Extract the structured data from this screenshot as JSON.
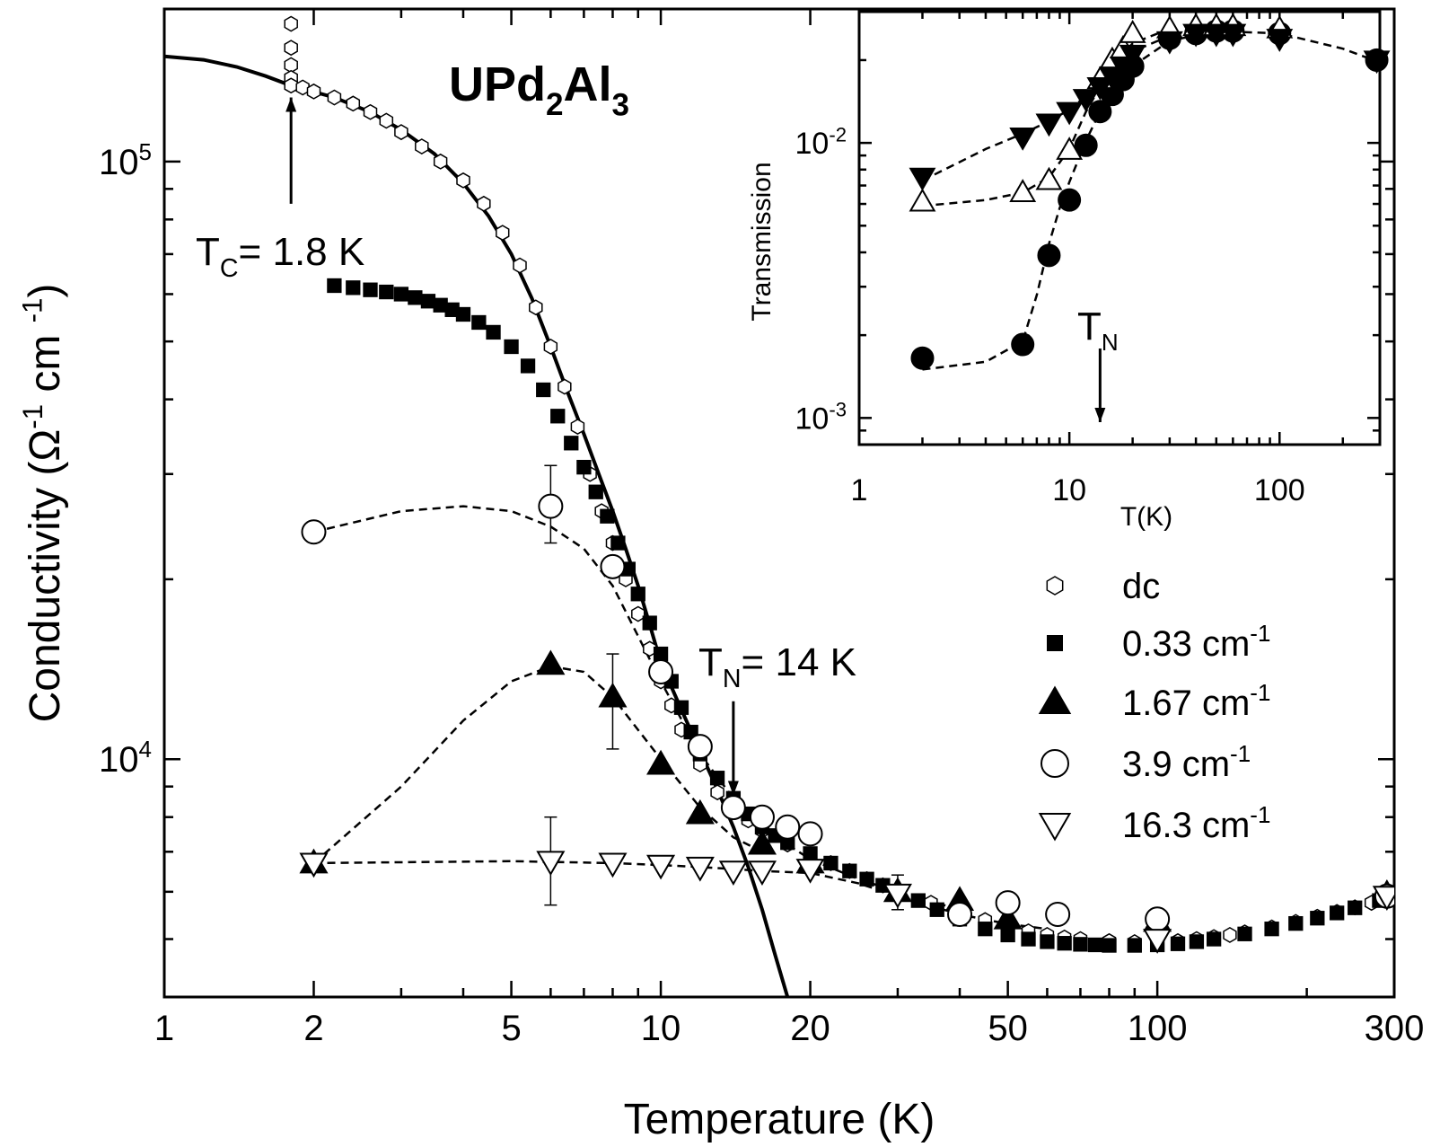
{
  "chart_data": [
    {
      "type": "scatter",
      "title_parts": {
        "base": "UPd",
        "sub1": "2",
        "mid": "Al",
        "sub2": "3"
      },
      "xlabel": "Temperature (K)",
      "ylabel": "Conductivity (Ω⁻¹ cm⁻¹)",
      "ylabel_parts": {
        "pre": "Conductivity (Ω",
        "sup1": "-1",
        "mid": " cm ",
        "sup2": "-1",
        "post": ")"
      },
      "xscale": "log",
      "yscale": "log",
      "xlim": [
        1,
        300
      ],
      "ylim": [
        4000,
        180000
      ],
      "xticks": [
        1,
        2,
        5,
        10,
        20,
        50,
        100,
        300
      ],
      "xtick_labels": [
        "1",
        "2",
        "5",
        "10",
        "20",
        "50",
        "100",
        "300"
      ],
      "yticks_major": [
        10000,
        100000
      ],
      "ytick_labels": [
        {
          "base": "10",
          "exp": "4"
        },
        {
          "base": "10",
          "exp": "5"
        }
      ],
      "annotations": [
        {
          "text": "T",
          "sub": "C",
          "rest": "= 1.8 K",
          "arrow_x": 1.8,
          "arrow_from_y": 85000,
          "arrow_to_y": 128000
        },
        {
          "text": "T",
          "sub": "N",
          "rest": "= 14 K",
          "arrow_x": 14,
          "arrow_from_y": 12500,
          "arrow_to_y": 8700
        }
      ],
      "legend": {
        "position": "lower-right",
        "entries": [
          {
            "label": "dc",
            "marker": "hexagon-open"
          },
          {
            "label": "0.33 cm",
            "sup": "-1",
            "marker": "square-filled"
          },
          {
            "label": "1.67 cm",
            "sup": "-1",
            "marker": "triangle-up-filled"
          },
          {
            "label": "3.9 cm",
            "sup": "-1",
            "marker": "circle-open"
          },
          {
            "label": "16.3 cm",
            "sup": "-1",
            "marker": "triangle-down-open"
          }
        ]
      },
      "series": [
        {
          "name": "dc",
          "marker": "hexagon-open",
          "x": [
            1.8,
            1.8,
            1.8,
            1.8,
            1.8,
            1.8,
            1.9,
            2.0,
            2.2,
            2.4,
            2.6,
            2.8,
            3.0,
            3.3,
            3.6,
            4.0,
            4.4,
            4.8,
            5.2,
            5.6,
            6.0,
            6.4,
            6.8,
            7.2,
            7.6,
            8.0,
            8.5,
            9.0,
            9.5,
            10.0,
            10.5,
            11,
            12,
            13,
            14,
            15,
            16,
            18,
            20,
            22,
            24,
            26,
            28,
            30,
            35,
            40,
            45,
            50,
            55,
            60,
            65,
            70,
            80,
            90,
            100,
            110,
            120,
            130,
            140,
            150,
            170,
            190,
            210,
            230,
            250,
            270,
            290
          ],
          "y": [
            200000,
            170000,
            155000,
            145000,
            138000,
            134000,
            133000,
            131000,
            128000,
            125000,
            121000,
            117000,
            112000,
            106000,
            100000,
            93000,
            85000,
            76000,
            67000,
            57000,
            49000,
            42000,
            36000,
            30000,
            26000,
            23000,
            20000,
            17500,
            15300,
            13500,
            12300,
            11200,
            9800,
            8800,
            8300,
            7900,
            7600,
            7200,
            6900,
            6700,
            6500,
            6300,
            6150,
            6000,
            5750,
            5550,
            5380,
            5250,
            5150,
            5080,
            5030,
            5000,
            4960,
            4940,
            4940,
            4960,
            5000,
            5040,
            5080,
            5130,
            5230,
            5340,
            5450,
            5550,
            5650,
            5750,
            5850
          ]
        },
        {
          "name": "0.33 cm-1",
          "marker": "square-filled",
          "x": [
            2.2,
            2.4,
            2.6,
            2.8,
            3.0,
            3.2,
            3.4,
            3.6,
            3.8,
            4.0,
            4.3,
            4.6,
            5.0,
            5.4,
            5.8,
            6.2,
            6.6,
            7.0,
            7.4,
            7.8,
            8.2,
            8.6,
            9.0,
            9.5,
            10.0,
            10.5,
            11,
            11.5,
            12,
            13,
            14,
            15,
            16,
            17,
            18,
            20,
            22,
            24,
            26,
            28,
            30,
            33,
            36,
            40,
            45,
            50,
            55,
            60,
            65,
            70,
            75,
            80,
            90,
            100,
            110,
            120,
            130,
            150,
            170,
            190,
            210,
            230,
            250,
            280
          ],
          "y": [
            62000,
            61500,
            61000,
            60500,
            60000,
            59200,
            58400,
            57500,
            56500,
            55500,
            53800,
            51800,
            49000,
            45500,
            41500,
            37500,
            33800,
            30800,
            28000,
            25500,
            23000,
            20800,
            18900,
            16900,
            15000,
            13500,
            12200,
            11100,
            10200,
            9300,
            8600,
            8100,
            7700,
            7450,
            7250,
            6950,
            6700,
            6500,
            6300,
            6150,
            6000,
            5800,
            5600,
            5400,
            5200,
            5080,
            5000,
            4950,
            4920,
            4900,
            4890,
            4880,
            4880,
            4890,
            4910,
            4950,
            5000,
            5100,
            5200,
            5310,
            5420,
            5530,
            5640,
            5800
          ]
        },
        {
          "name": "1.67 cm-1",
          "marker": "triangle-up-filled",
          "x": [
            2,
            6,
            8,
            10,
            12,
            16,
            20,
            30,
            40,
            50,
            100,
            290
          ],
          "y": [
            6700,
            14400,
            12700,
            9800,
            8100,
            7200,
            6700,
            6000,
            5800,
            5400,
            5350,
            5950
          ],
          "error_bars": [
            {
              "x": 8,
              "low": 10400,
              "high": 15000
            }
          ]
        },
        {
          "name": "3.9 cm-1",
          "marker": "circle-open",
          "x": [
            2,
            6,
            8,
            10,
            12,
            14,
            16,
            18,
            20,
            40,
            50,
            63,
            100,
            290
          ],
          "y": [
            24000,
            26500,
            21000,
            14000,
            10500,
            8300,
            8000,
            7700,
            7500,
            5500,
            5750,
            5500,
            5400,
            5900
          ],
          "error_bars": [
            {
              "x": 6,
              "low": 23000,
              "high": 31000
            }
          ]
        },
        {
          "name": "16.3 cm-1",
          "marker": "triangle-down-open",
          "x": [
            2,
            6,
            8,
            10,
            12,
            14,
            16,
            20,
            30,
            100,
            290
          ],
          "y": [
            6700,
            6750,
            6700,
            6650,
            6600,
            6500,
            6500,
            6550,
            5950,
            5000,
            5900
          ],
          "error_bars": [
            {
              "x": 6,
              "low": 5700,
              "high": 8000
            },
            {
              "x": 30,
              "low": 5600,
              "high": 6400
            }
          ]
        }
      ],
      "fit_curves": [
        {
          "style": "solid",
          "label": "fit",
          "x": [
            1,
            1.2,
            1.4,
            1.6,
            1.8,
            2.2,
            2.6,
            3.0,
            3.5,
            4.0,
            4.5,
            5.0,
            5.5,
            6.0,
            6.5,
            7.0,
            7.5,
            8.0,
            8.5,
            9.0,
            9.5,
            10,
            11,
            12,
            13,
            14,
            15,
            16,
            17,
            18
          ],
          "y": [
            150000,
            148000,
            144000,
            139000,
            134000,
            128000,
            121000,
            113000,
            103000,
            92000,
            81000,
            70000,
            59000,
            49000,
            41000,
            35000,
            30000,
            26000,
            22500,
            19500,
            16800,
            14500,
            12100,
            10300,
            8900,
            7700,
            6600,
            5600,
            4700,
            4000
          ]
        },
        {
          "style": "dashed",
          "series": "3.9 cm-1",
          "x": [
            2,
            3,
            4,
            5,
            6,
            7,
            8,
            10,
            12,
            14,
            16,
            18,
            20,
            25,
            30,
            40
          ],
          "y": [
            24000,
            26000,
            26500,
            26000,
            24500,
            22500,
            19500,
            13500,
            10200,
            8600,
            7700,
            7200,
            6800,
            6300,
            6000,
            5600
          ]
        },
        {
          "style": "dashed",
          "series": "1.67 cm-1",
          "x": [
            2,
            3,
            4,
            5,
            6,
            7,
            8,
            10,
            12,
            14,
            16
          ],
          "y": [
            6700,
            9000,
            11600,
            13500,
            14300,
            14000,
            12700,
            10000,
            8300,
            7400,
            7000
          ]
        },
        {
          "style": "dashed",
          "series": "16.3 cm-1",
          "x": [
            2,
            5,
            8,
            10,
            12,
            14,
            16,
            20,
            25,
            30,
            40,
            50,
            60
          ],
          "y": [
            6700,
            6750,
            6700,
            6650,
            6600,
            6550,
            6500,
            6450,
            6200,
            5900,
            5500,
            5300,
            5200
          ]
        }
      ]
    },
    {
      "type": "scatter",
      "title": "",
      "xlabel": "T(K)",
      "ylabel": "Transmission",
      "xscale": "log",
      "yscale": "log",
      "xlim": [
        1,
        300
      ],
      "ylim": [
        0.0008,
        0.03
      ],
      "xticks": [
        1,
        10,
        100
      ],
      "xtick_labels": [
        "1",
        "10",
        "100"
      ],
      "yticks_major": [
        0.001,
        0.01
      ],
      "ytick_labels": [
        {
          "base": "10",
          "exp": "-3"
        },
        {
          "base": "10",
          "exp": "-2"
        }
      ],
      "annotations": [
        {
          "text": "T",
          "sub": "N",
          "arrow_x": 14,
          "arrow_from_y": 0.0018,
          "arrow_to_y": 0.001
        }
      ],
      "series": [
        {
          "name": "filled circles",
          "marker": "circle-filled",
          "x": [
            2,
            6,
            8,
            10,
            12,
            14,
            16,
            18,
            20,
            30,
            40,
            50,
            60,
            100,
            290
          ],
          "y": [
            0.00165,
            0.00185,
            0.0039,
            0.0062,
            0.0098,
            0.013,
            0.015,
            0.017,
            0.019,
            0.024,
            0.025,
            0.0255,
            0.0255,
            0.025,
            0.02
          ]
        },
        {
          "name": "open triangles up",
          "marker": "triangle-up-open",
          "x": [
            2,
            6,
            8,
            10,
            14,
            16,
            18,
            20,
            30,
            40,
            50,
            60,
            100
          ],
          "y": [
            0.0061,
            0.0066,
            0.0073,
            0.0094,
            0.017,
            0.02,
            0.022,
            0.025,
            0.026,
            0.0265,
            0.0265,
            0.0265,
            0.026
          ]
        },
        {
          "name": "filled triangles down",
          "marker": "triangle-down-filled",
          "x": [
            2,
            6,
            8,
            10,
            12,
            14,
            16,
            18,
            20,
            30,
            40,
            50,
            60,
            100,
            290
          ],
          "y": [
            0.0075,
            0.0105,
            0.0118,
            0.013,
            0.0145,
            0.016,
            0.0175,
            0.019,
            0.021,
            0.0235,
            0.025,
            0.025,
            0.025,
            0.024,
            0.02
          ]
        }
      ],
      "fit_curves": [
        {
          "style": "dashed",
          "series": "filled circles",
          "x": [
            2,
            4,
            6,
            7,
            8,
            9,
            10,
            12,
            14,
            16,
            20,
            30,
            50,
            100,
            200,
            290
          ],
          "y": [
            0.0015,
            0.0016,
            0.0019,
            0.0028,
            0.0043,
            0.0058,
            0.0072,
            0.0102,
            0.013,
            0.0155,
            0.019,
            0.0235,
            0.0255,
            0.025,
            0.022,
            0.0198
          ]
        },
        {
          "style": "dashed",
          "series": "open triangles up",
          "x": [
            2,
            4,
            6,
            8,
            10,
            12,
            14,
            17,
            20,
            30
          ],
          "y": [
            0.0059,
            0.0062,
            0.0066,
            0.0075,
            0.0095,
            0.013,
            0.016,
            0.02,
            0.023,
            0.026
          ]
        },
        {
          "style": "dashed",
          "series": "filled triangles down",
          "x": [
            2,
            4,
            6,
            8,
            10,
            12,
            15,
            20,
            30
          ],
          "y": [
            0.0073,
            0.0095,
            0.0108,
            0.012,
            0.0132,
            0.0148,
            0.0175,
            0.0215,
            0.0245
          ]
        }
      ]
    }
  ]
}
